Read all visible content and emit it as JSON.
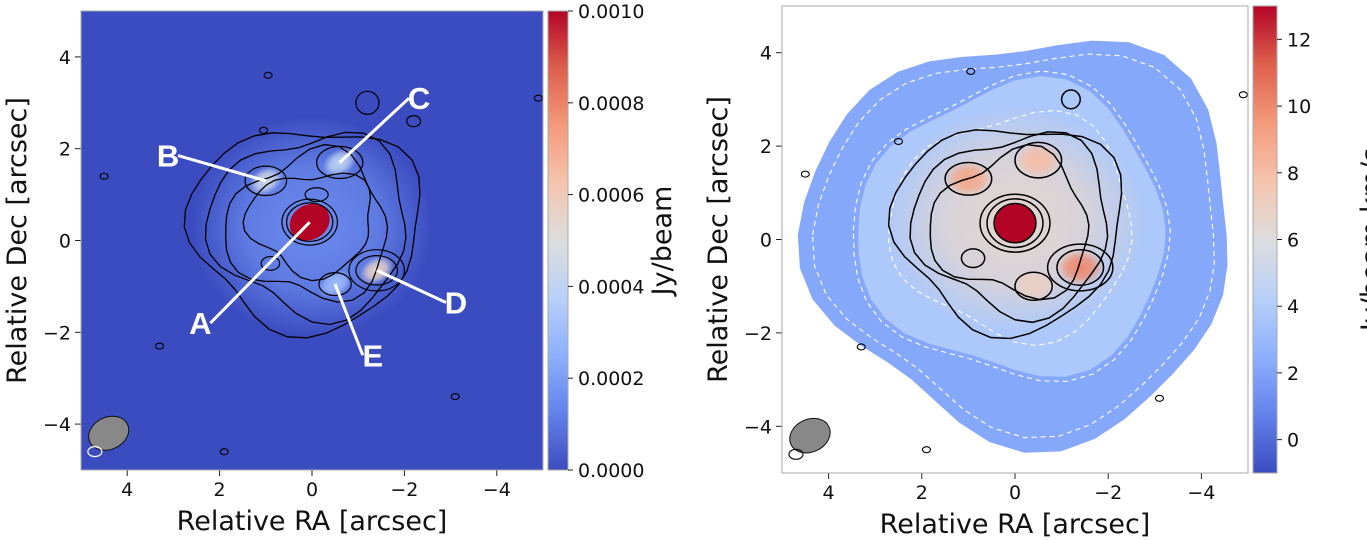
{
  "chart_data": [
    {
      "type": "heatmap",
      "panel": "left",
      "xlabel": "Relative RA [arcsec]",
      "ylabel": "Relative Dec [arcsec]",
      "xlim": [
        5,
        -5
      ],
      "ylim": [
        -5,
        5
      ],
      "xticks": [
        4,
        2,
        0,
        -2,
        -4
      ],
      "xtick_labels": [
        "4",
        "2",
        "0",
        "−2",
        "−4"
      ],
      "yticks": [
        4,
        2,
        0,
        -2,
        -4
      ],
      "ytick_labels": [
        "4",
        "2",
        "0",
        "−2",
        "−4"
      ],
      "colorbar": {
        "label": "Jy/beam",
        "range": [
          0.0,
          0.001
        ],
        "ticks": [
          0.0,
          0.0002,
          0.0004,
          0.0006,
          0.0008,
          0.001
        ],
        "tick_labels": [
          "0.0000",
          "0.0002",
          "0.0004",
          "0.0006",
          "0.0008",
          "0.0010"
        ],
        "colormap": "coolwarm"
      },
      "sources": [
        {
          "name": "A",
          "x": 0.05,
          "y": 0.4,
          "value": 0.001
        },
        {
          "name": "B",
          "x": 1.0,
          "y": 1.3,
          "value": 0.00045
        },
        {
          "name": "C",
          "x": -0.6,
          "y": 1.7,
          "value": 0.0004
        },
        {
          "name": "D",
          "x": -1.4,
          "y": -0.65,
          "value": 0.00055
        },
        {
          "name": "E",
          "x": -0.5,
          "y": -0.95,
          "value": 0.0003
        }
      ],
      "annotations": [
        {
          "label": "A",
          "point": [
            0.05,
            0.4
          ],
          "text_at": [
            2.2,
            -1.8
          ]
        },
        {
          "label": "B",
          "point": [
            1.0,
            1.3
          ],
          "text_at": [
            2.9,
            1.85
          ]
        },
        {
          "label": "C",
          "point": [
            -0.6,
            1.7
          ],
          "text_at": [
            -2.1,
            3.1
          ]
        },
        {
          "label": "D",
          "point": [
            -1.4,
            -0.65
          ],
          "text_at": [
            -2.9,
            -1.35
          ]
        },
        {
          "label": "E",
          "point": [
            -0.5,
            -0.95
          ],
          "text_at": [
            -1.1,
            -2.5
          ]
        }
      ],
      "beam": {
        "x": 4.4,
        "y": -4.4,
        "major": 0.5,
        "minor": 0.35
      },
      "colors": {
        "background": "#3b4cc0",
        "peak": "#b40426"
      }
    },
    {
      "type": "heatmap",
      "panel": "right",
      "xlabel": "Relative RA [arcsec]",
      "ylabel": "Relative Dec [arcsec]",
      "xlim": [
        5,
        -5
      ],
      "ylim": [
        -5,
        5
      ],
      "xticks": [
        4,
        2,
        0,
        -2,
        -4
      ],
      "xtick_labels": [
        "4",
        "2",
        "0",
        "−2",
        "−4"
      ],
      "yticks": [
        4,
        2,
        0,
        -2,
        -4
      ],
      "ytick_labels": [
        "4",
        "2",
        "0",
        "−2",
        "−4"
      ],
      "colorbar": {
        "label": "Jy/beam.km/s",
        "range": [
          -1,
          13
        ],
        "ticks": [
          0,
          2,
          4,
          6,
          8,
          10,
          12
        ],
        "tick_labels": [
          "0",
          "2",
          "4",
          "6",
          "8",
          "10",
          "12"
        ],
        "colormap": "coolwarm"
      },
      "features": [
        {
          "x": 0.0,
          "y": 0.35,
          "value": 13
        },
        {
          "x": 1.0,
          "y": 1.3,
          "value": 9
        },
        {
          "x": -0.5,
          "y": 1.7,
          "value": 8
        },
        {
          "x": -1.4,
          "y": -0.6,
          "value": 10
        },
        {
          "x": -0.4,
          "y": -1.0,
          "value": 7
        }
      ],
      "beam": {
        "x": 4.4,
        "y": -4.4,
        "major": 0.5,
        "minor": 0.35
      },
      "colors": {
        "background_white": "#ffffff",
        "peak": "#b40426"
      }
    }
  ]
}
